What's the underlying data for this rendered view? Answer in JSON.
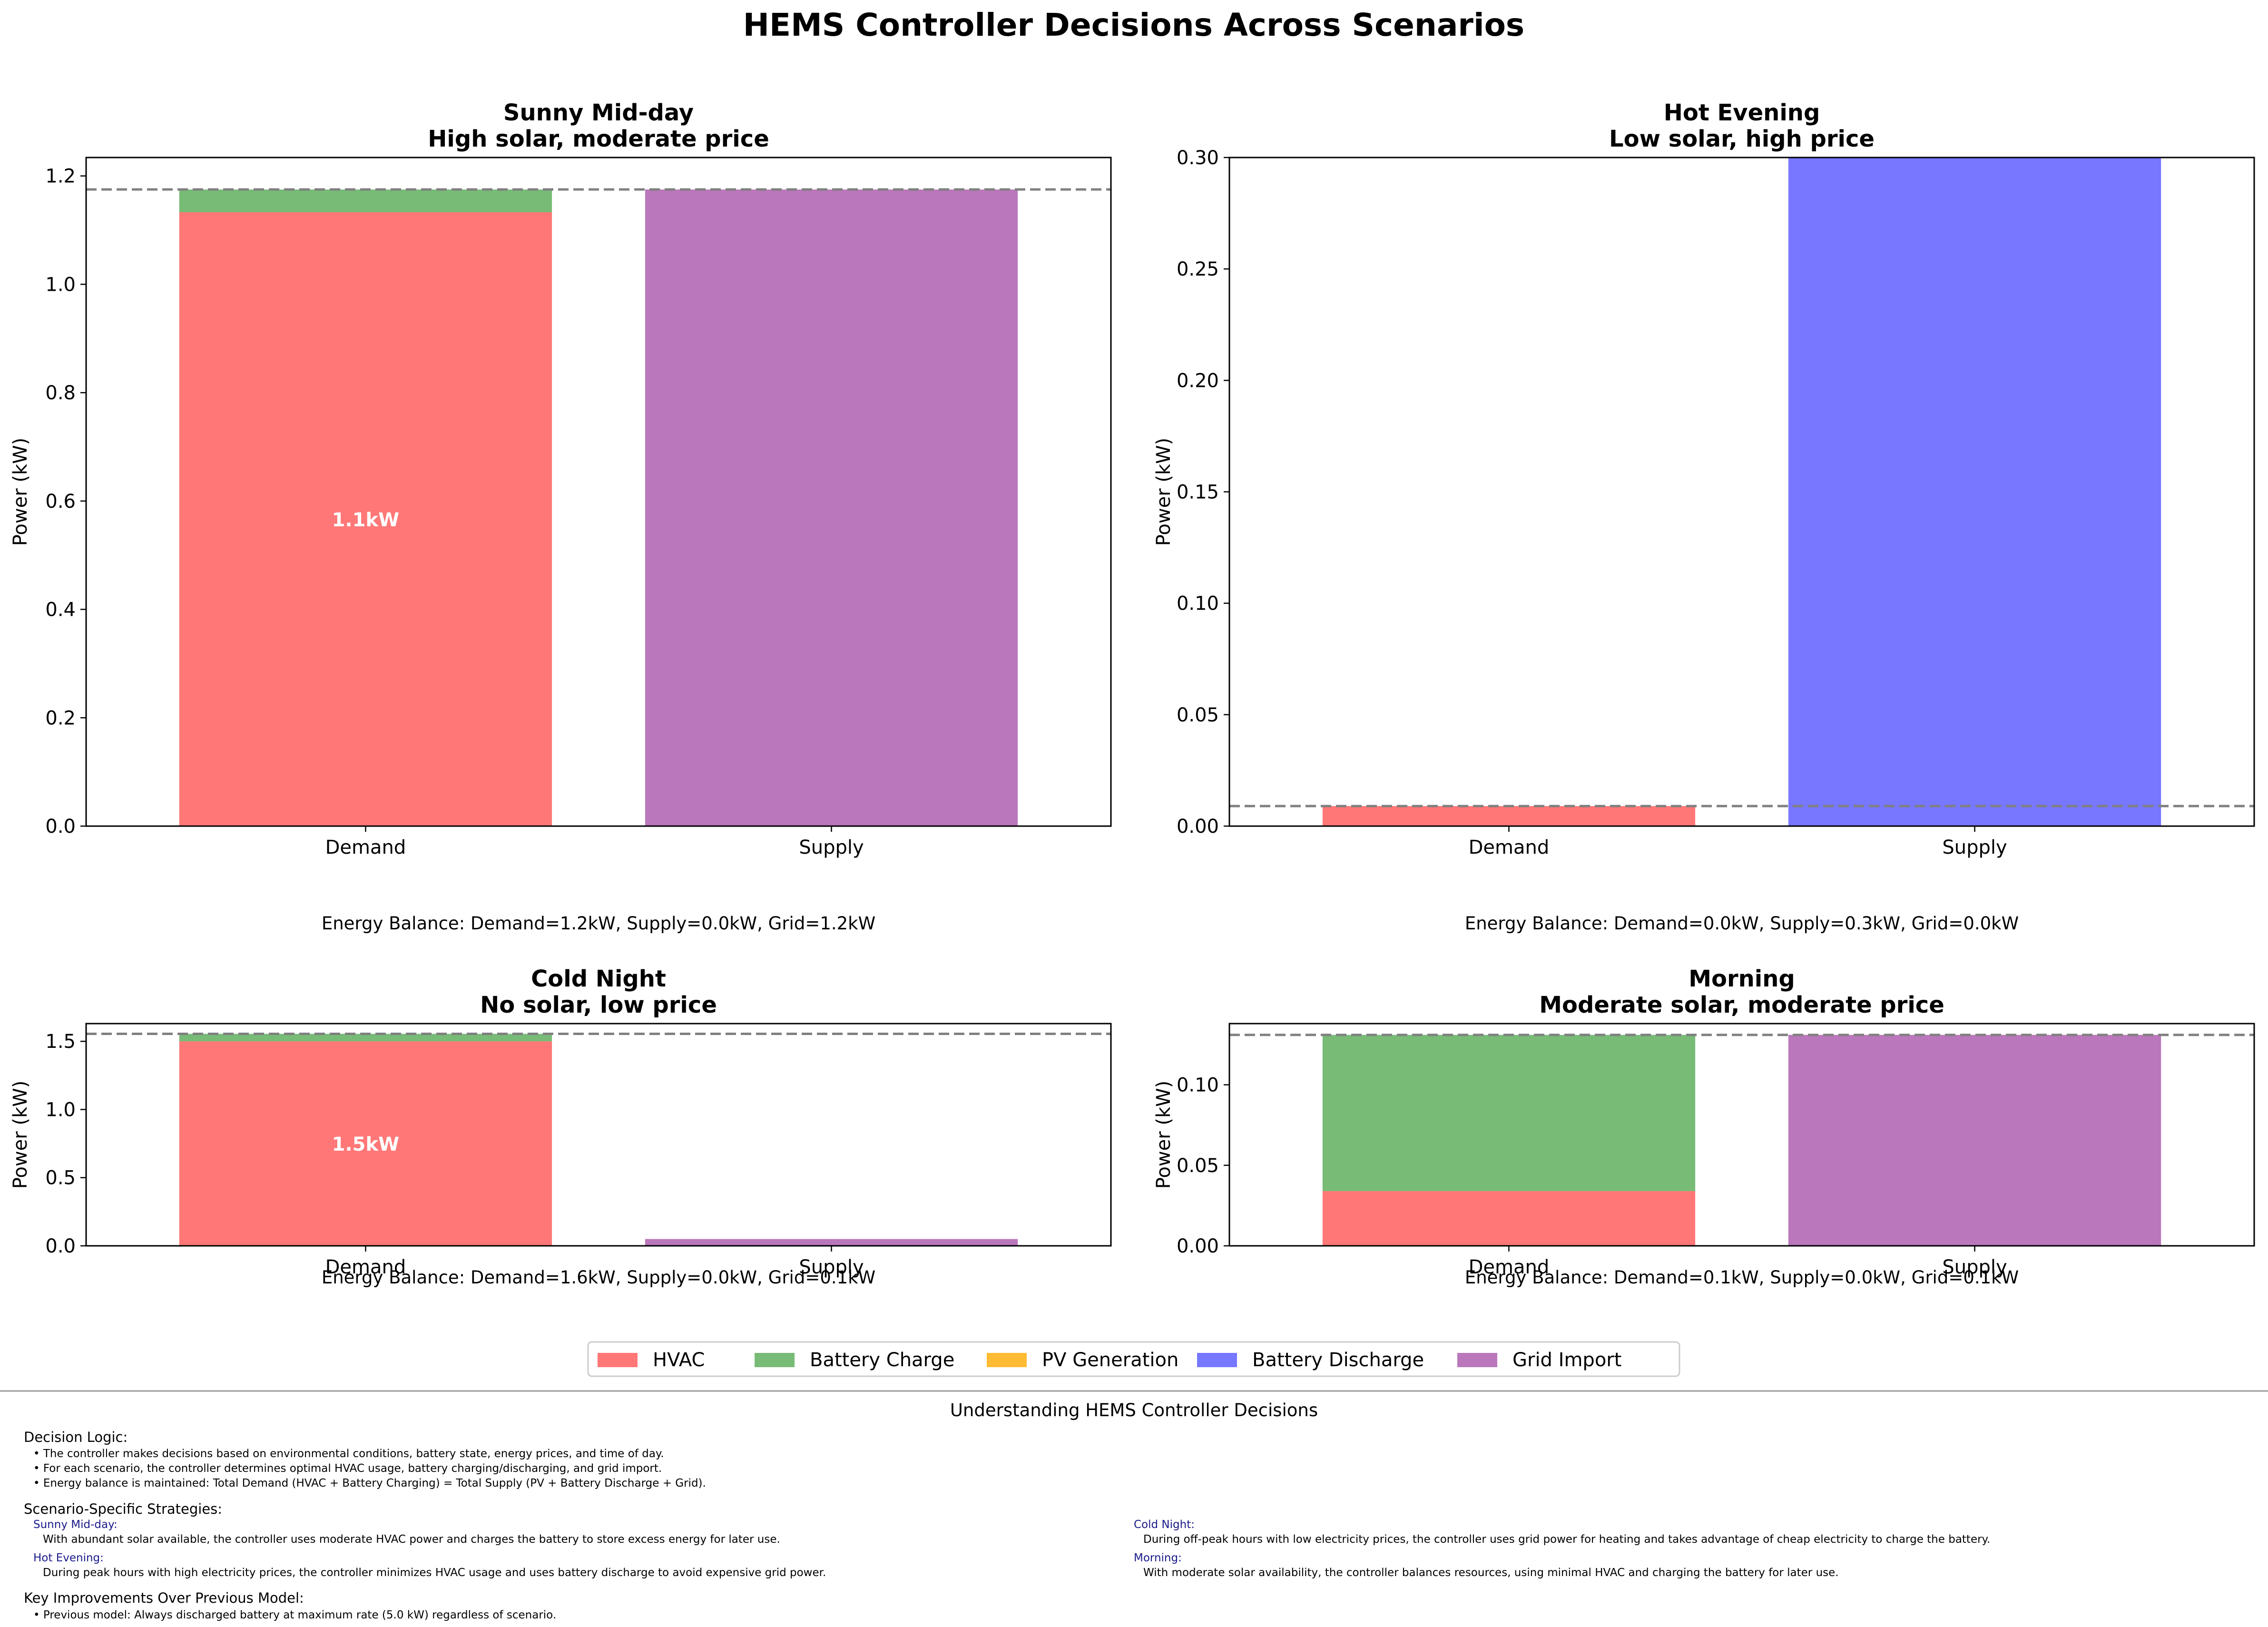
{
  "title": "HEMS Controller Decisions Across Scenarios",
  "colors": {
    "HVAC": "#ff7777",
    "Battery Charge": "#77bb77",
    "PV Generation": "#ffbb33",
    "Battery Discharge": "#7777ff",
    "Grid Import": "#bb77bb",
    "reference_line": "#808080"
  },
  "legend": {
    "placement": "bottom-center",
    "entries": [
      "HVAC",
      "Battery Charge",
      "PV Generation",
      "Battery Discharge",
      "Grid Import"
    ]
  },
  "chart_data": [
    {
      "type": "bar",
      "stacked": true,
      "title": "Sunny Mid-day",
      "subtitle": "High solar, moderate price",
      "ylabel": "Power (kW)",
      "categories": [
        "Demand",
        "Supply"
      ],
      "ylim": [
        0,
        1.234
      ],
      "yticks": [
        0.0,
        0.2,
        0.4,
        0.6,
        0.8,
        1.0,
        1.2
      ],
      "ytick_labels": [
        "0.0",
        "0.2",
        "0.4",
        "0.6",
        "0.8",
        "1.0",
        "1.2"
      ],
      "series": [
        {
          "name": "HVAC",
          "values": [
            1.133,
            0
          ]
        },
        {
          "name": "Battery Charge",
          "values": [
            0.042,
            0
          ]
        },
        {
          "name": "PV Generation",
          "values": [
            0,
            0
          ]
        },
        {
          "name": "Battery Discharge",
          "values": [
            0,
            0
          ]
        },
        {
          "name": "Grid Import",
          "values": [
            0,
            1.175
          ]
        }
      ],
      "reference_line": 1.175,
      "bar_label": {
        "series": "HVAC",
        "category": "Demand",
        "text": "1.1kW"
      },
      "balance_text": "Energy Balance: Demand=1.2kW, Supply=0.0kW, Grid=1.2kW"
    },
    {
      "type": "bar",
      "stacked": true,
      "title": "Hot Evening",
      "subtitle": "Low solar, high price",
      "ylabel": "Power (kW)",
      "categories": [
        "Demand",
        "Supply"
      ],
      "ylim": [
        0,
        0.3
      ],
      "yticks": [
        0.0,
        0.05,
        0.1,
        0.15,
        0.2,
        0.25,
        0.3
      ],
      "ytick_labels": [
        "0.00",
        "0.05",
        "0.10",
        "0.15",
        "0.20",
        "0.25",
        "0.30"
      ],
      "series": [
        {
          "name": "HVAC",
          "values": [
            0.009,
            0
          ]
        },
        {
          "name": "Battery Charge",
          "values": [
            0,
            0
          ]
        },
        {
          "name": "PV Generation",
          "values": [
            0,
            0
          ]
        },
        {
          "name": "Battery Discharge",
          "values": [
            0,
            0.3
          ]
        },
        {
          "name": "Grid Import",
          "values": [
            0,
            0
          ]
        }
      ],
      "reference_line": 0.009,
      "bar_label": null,
      "balance_text": "Energy Balance: Demand=0.0kW, Supply=0.3kW, Grid=0.0kW"
    },
    {
      "type": "bar",
      "stacked": true,
      "title": "Cold Night",
      "subtitle": "No solar, low price",
      "ylabel": "Power (kW)",
      "categories": [
        "Demand",
        "Supply"
      ],
      "ylim": [
        0,
        1.63
      ],
      "yticks": [
        0.0,
        0.5,
        1.0,
        1.5
      ],
      "ytick_labels": [
        "0.0",
        "0.5",
        "1.0",
        "1.5"
      ],
      "series": [
        {
          "name": "HVAC",
          "values": [
            1.5,
            0
          ]
        },
        {
          "name": "Battery Charge",
          "values": [
            0.055,
            0
          ]
        },
        {
          "name": "PV Generation",
          "values": [
            0,
            0
          ]
        },
        {
          "name": "Battery Discharge",
          "values": [
            0,
            0
          ]
        },
        {
          "name": "Grid Import",
          "values": [
            0,
            0.05
          ]
        }
      ],
      "reference_line": 1.555,
      "bar_label": {
        "series": "HVAC",
        "category": "Demand",
        "text": "1.5kW"
      },
      "balance_text": "Energy Balance: Demand=1.6kW, Supply=0.0kW, Grid=0.1kW"
    },
    {
      "type": "bar",
      "stacked": true,
      "title": "Morning",
      "subtitle": "Moderate solar, moderate price",
      "ylabel": "Power (kW)",
      "categories": [
        "Demand",
        "Supply"
      ],
      "ylim": [
        0,
        0.138
      ],
      "yticks": [
        0.0,
        0.05,
        0.1
      ],
      "ytick_labels": [
        "0.00",
        "0.05",
        "0.10"
      ],
      "series": [
        {
          "name": "HVAC",
          "values": [
            0.034,
            0
          ]
        },
        {
          "name": "Battery Charge",
          "values": [
            0.097,
            0
          ]
        },
        {
          "name": "PV Generation",
          "values": [
            0,
            0
          ]
        },
        {
          "name": "Battery Discharge",
          "values": [
            0,
            0
          ]
        },
        {
          "name": "Grid Import",
          "values": [
            0,
            0.131
          ]
        }
      ],
      "reference_line": 0.131,
      "bar_label": null,
      "balance_text": "Energy Balance: Demand=0.1kW, Supply=0.0kW, Grid=0.1kW"
    }
  ],
  "notes": {
    "title": "Understanding HEMS Controller Decisions",
    "decision_logic": {
      "heading": "Decision Logic:",
      "bullets": [
        "• The controller makes decisions based on environmental conditions, battery state, energy prices, and time of day.",
        "• For each scenario, the controller determines optimal HVAC usage, battery charging/discharging, and grid import.",
        "• Energy balance is maintained: Total Demand (HVAC + Battery Charging) = Total Supply (PV + Battery Discharge + Grid)."
      ]
    },
    "strategies": {
      "heading": "Scenario-Specific Strategies:",
      "items": [
        {
          "name": "Sunny Mid-day:",
          "text": "With abundant solar available, the controller uses moderate HVAC power and charges the battery to store excess energy for later use."
        },
        {
          "name": "Cold Night:",
          "text": "During off-peak hours with low electricity prices, the controller uses grid power for heating and takes advantage of cheap electricity to charge the battery."
        },
        {
          "name": "Hot Evening:",
          "text": "During peak hours with high electricity prices, the controller minimizes HVAC usage and uses battery discharge to avoid expensive grid power."
        },
        {
          "name": "Morning:",
          "text": "With moderate solar availability, the controller balances resources, using minimal HVAC and charging the battery for later use."
        }
      ]
    },
    "improvements": {
      "heading": "Key Improvements Over Previous Model:",
      "bullets": [
        "• Previous model: Always discharged battery at maximum rate (5.0 kW) regardless of scenario."
      ]
    }
  }
}
